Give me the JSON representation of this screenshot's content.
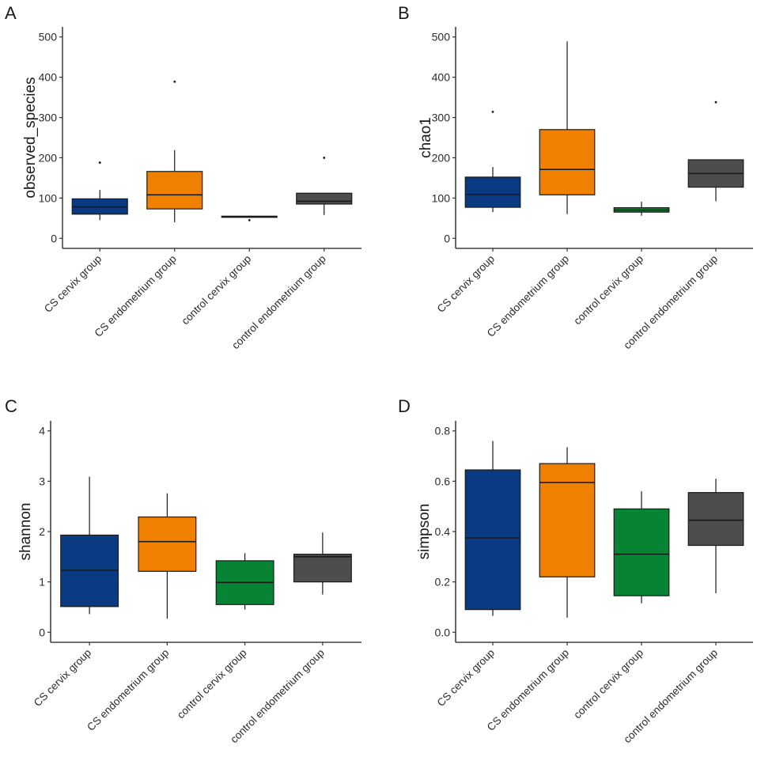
{
  "colors": {
    "CS cervix group": "#0a3a82",
    "CS endometrium group": "#f08000",
    "control cervix group": "#078433",
    "control endometrium group": "#4d4d4d"
  },
  "chart_data": [
    {
      "type": "box",
      "panel": "A",
      "ylabel": "observed_species",
      "ylim": [
        -25,
        525
      ],
      "yticks": [
        0,
        100,
        200,
        300,
        400,
        500
      ],
      "categories": [
        "CS cervix group",
        "CS endometrium group",
        "control cervix group",
        "control endometrium group"
      ],
      "boxes": [
        {
          "whisker_low": 45,
          "q1": 60,
          "median": 78,
          "q3": 98,
          "whisker_high": 120,
          "outliers": [
            188
          ]
        },
        {
          "whisker_low": 40,
          "q1": 73,
          "median": 108,
          "q3": 166,
          "whisker_high": 219,
          "outliers": [
            389
          ]
        },
        {
          "whisker_low": 52,
          "q1": 53,
          "median": 54,
          "q3": 55,
          "whisker_high": 56,
          "outliers": [
            45
          ]
        },
        {
          "whisker_low": 58,
          "q1": 85,
          "median": 92,
          "q3": 112,
          "whisker_high": 113,
          "outliers": [
            200
          ]
        }
      ]
    },
    {
      "type": "box",
      "panel": "B",
      "ylabel": "chao1",
      "ylim": [
        -25,
        525
      ],
      "yticks": [
        0,
        100,
        200,
        300,
        400,
        500
      ],
      "categories": [
        "CS cervix group",
        "CS endometrium group",
        "control cervix group",
        "control endometrium group"
      ],
      "boxes": [
        {
          "whisker_low": 65,
          "q1": 77,
          "median": 109,
          "q3": 152,
          "whisker_high": 177,
          "outliers": [
            314
          ]
        },
        {
          "whisker_low": 60,
          "q1": 108,
          "median": 171,
          "q3": 270,
          "whisker_high": 489,
          "outliers": []
        },
        {
          "whisker_low": 56,
          "q1": 65,
          "median": 70,
          "q3": 76,
          "whisker_high": 91,
          "outliers": []
        },
        {
          "whisker_low": 92,
          "q1": 127,
          "median": 161,
          "q3": 195,
          "whisker_high": 195,
          "outliers": [
            338
          ]
        }
      ]
    },
    {
      "type": "box",
      "panel": "C",
      "ylabel": "shannon",
      "ylim": [
        -0.2,
        4.2
      ],
      "yticks": [
        0,
        1,
        2,
        3,
        4
      ],
      "categories": [
        "CS cervix group",
        "CS endometrium group",
        "control cervix group",
        "control endometrium group"
      ],
      "boxes": [
        {
          "whisker_low": 0.36,
          "q1": 0.51,
          "median": 1.23,
          "q3": 1.93,
          "whisker_high": 3.09,
          "outliers": []
        },
        {
          "whisker_low": 0.27,
          "q1": 1.21,
          "median": 1.8,
          "q3": 2.29,
          "whisker_high": 2.76,
          "outliers": []
        },
        {
          "whisker_low": 0.45,
          "q1": 0.55,
          "median": 0.99,
          "q3": 1.42,
          "whisker_high": 1.57,
          "outliers": []
        },
        {
          "whisker_low": 0.75,
          "q1": 1.0,
          "median": 1.5,
          "q3": 1.55,
          "whisker_high": 1.98,
          "outliers": []
        }
      ]
    },
    {
      "type": "box",
      "panel": "D",
      "ylabel": "simpson",
      "ylim": [
        -0.04,
        0.84
      ],
      "yticks": [
        0.0,
        0.2,
        0.4,
        0.6,
        0.8
      ],
      "ytick_labels": [
        "0.0",
        "0.2",
        "0.4",
        "0.6",
        "0.8"
      ],
      "categories": [
        "CS cervix group",
        "CS endometrium group",
        "control cervix group",
        "control endometrium group"
      ],
      "boxes": [
        {
          "whisker_low": 0.065,
          "q1": 0.09,
          "median": 0.375,
          "q3": 0.645,
          "whisker_high": 0.76,
          "outliers": []
        },
        {
          "whisker_low": 0.058,
          "q1": 0.22,
          "median": 0.595,
          "q3": 0.67,
          "whisker_high": 0.735,
          "outliers": []
        },
        {
          "whisker_low": 0.115,
          "q1": 0.145,
          "median": 0.31,
          "q3": 0.49,
          "whisker_high": 0.56,
          "outliers": []
        },
        {
          "whisker_low": 0.155,
          "q1": 0.345,
          "median": 0.445,
          "q3": 0.555,
          "whisker_high": 0.61,
          "outliers": []
        }
      ]
    }
  ]
}
